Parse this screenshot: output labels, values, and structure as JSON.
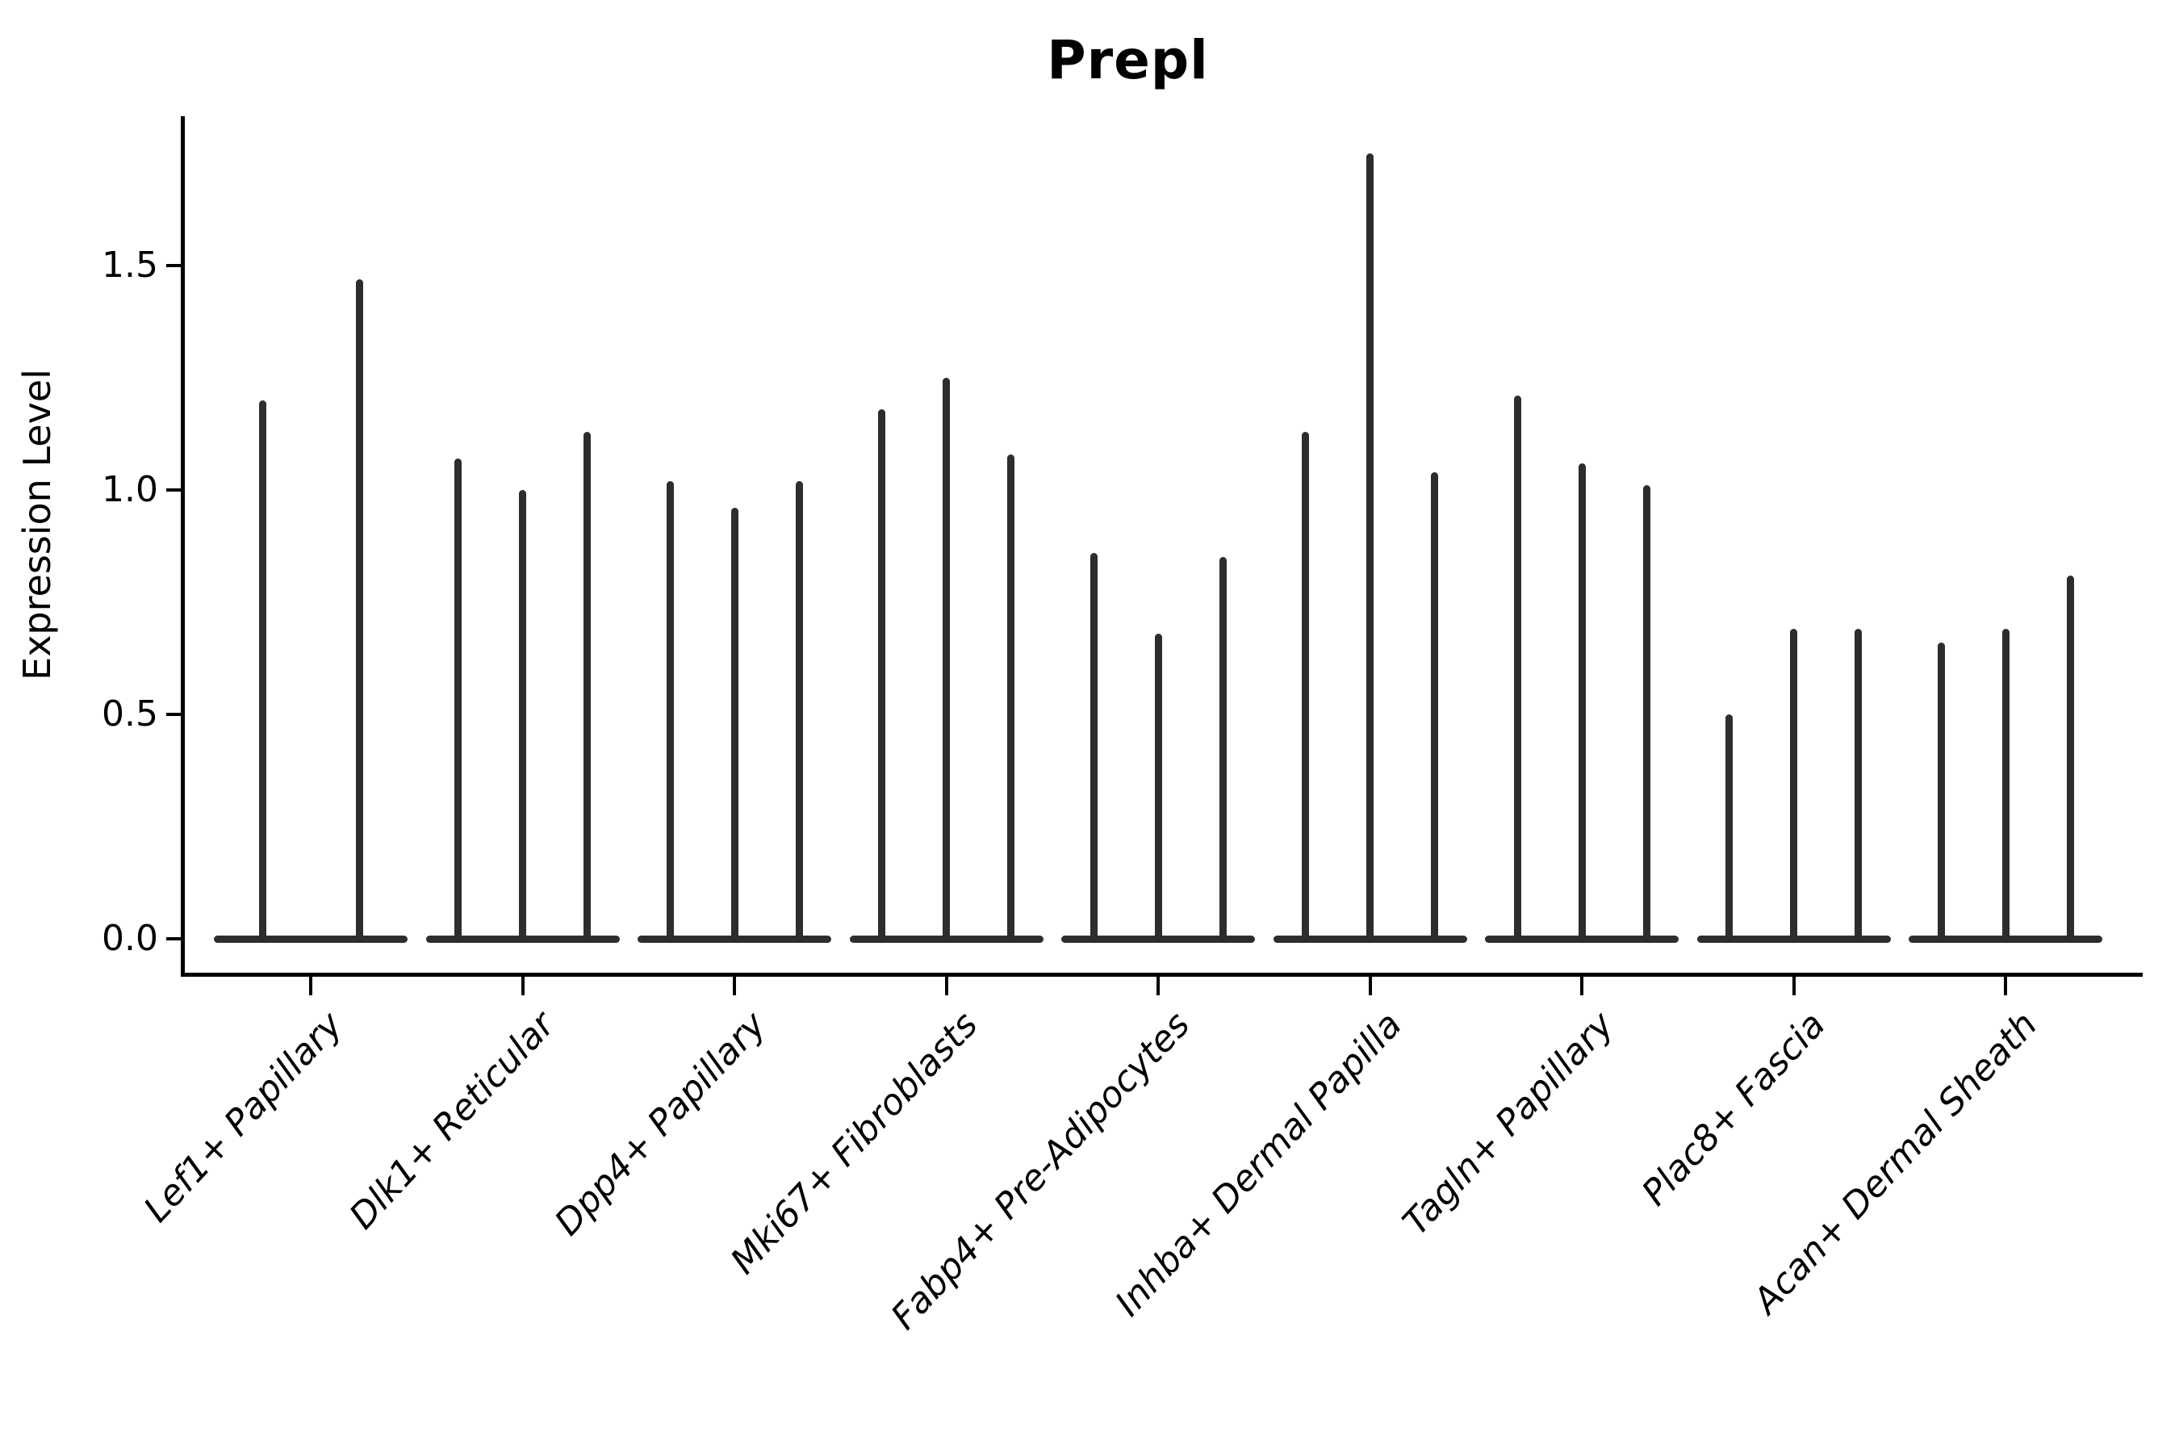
{
  "title": "Prepl",
  "axes": {
    "ylabel": "Expression Level",
    "xlabel": "",
    "ytick_labels": [
      "0.0",
      "0.5",
      "1.0",
      "1.5"
    ]
  },
  "style": {
    "ink_color": "#2d2d2d",
    "axis_color": "#000000",
    "background": "#ffffff"
  },
  "chart_data": {
    "type": "violin",
    "title": "Prepl",
    "xlabel": "",
    "ylabel": "Expression Level",
    "ylim": [
      0,
      1.83
    ],
    "yticks": [
      0.0,
      0.5,
      1.0,
      1.5
    ],
    "grid": false,
    "legend_position": "none",
    "orientation": "vertical",
    "description": "Narrow spike-shaped violins (expression concentrated at 0) grouped per cell type; values are the maximum expression level reached by each violin spike, left to right within each group.",
    "categories": [
      "Lef1+ Papillary",
      "Dlk1+ Reticular",
      "Dpp4+ Papillary",
      "Mki67+ Fibroblasts",
      "Fabp4+ Pre-Adipocytes",
      "Inhba+ Dermal Papilla",
      "Tagln+ Papillary",
      "Plac8+ Fascia",
      "Acan+ Dermal Sheath"
    ],
    "series": [
      {
        "category": "Lef1+ Papillary",
        "violin_maxima": [
          1.2,
          1.47
        ]
      },
      {
        "category": "Dlk1+ Reticular",
        "violin_maxima": [
          1.07,
          1.0,
          1.13
        ]
      },
      {
        "category": "Dpp4+ Papillary",
        "violin_maxima": [
          1.02,
          0.96,
          1.02
        ]
      },
      {
        "category": "Mki67+ Fibroblasts",
        "violin_maxima": [
          1.18,
          1.25,
          1.08
        ]
      },
      {
        "category": "Fabp4+ Pre-Adipocytes",
        "violin_maxima": [
          0.86,
          0.68,
          0.85
        ]
      },
      {
        "category": "Inhba+ Dermal Papilla",
        "violin_maxima": [
          1.13,
          1.75,
          1.04
        ]
      },
      {
        "category": "Tagln+ Papillary",
        "violin_maxima": [
          1.21,
          1.06,
          1.01
        ]
      },
      {
        "category": "Plac8+ Fascia",
        "violin_maxima": [
          0.5,
          0.69,
          0.69
        ]
      },
      {
        "category": "Acan+ Dermal Sheath",
        "violin_maxima": [
          0.66,
          0.69,
          0.81
        ]
      }
    ]
  }
}
